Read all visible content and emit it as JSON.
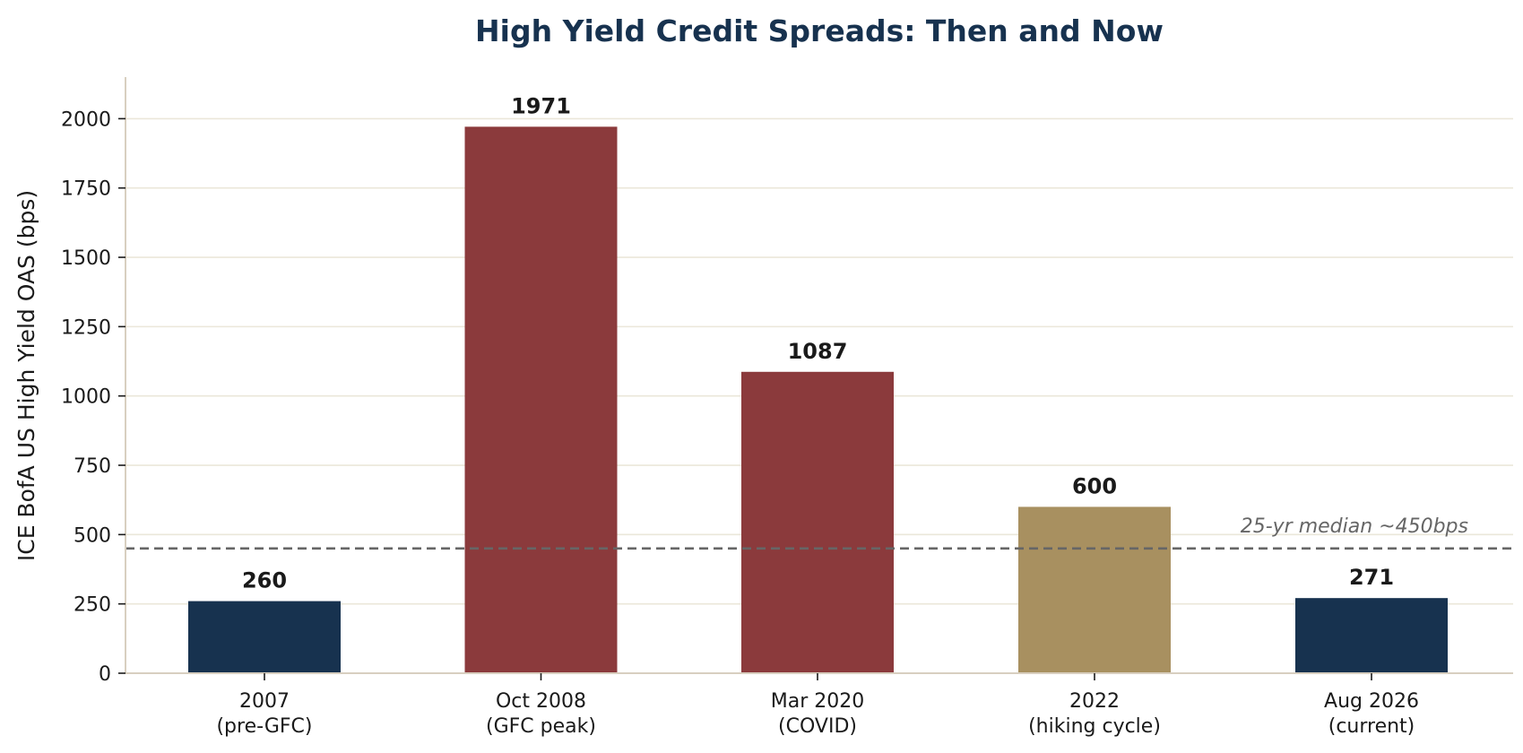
{
  "chart_data": {
    "type": "bar",
    "title": "High Yield Credit Spreads: Then and Now",
    "xlabel": "",
    "ylabel": "ICE BofA US High Yield OAS (bps)",
    "ylim": [
      0,
      2150
    ],
    "yticks": [
      0,
      250,
      500,
      750,
      1000,
      1250,
      1500,
      1750,
      2000
    ],
    "grid": "horizontal",
    "legend": "none",
    "categories": [
      [
        "2007",
        "(pre-GFC)"
      ],
      [
        "Oct 2008",
        "(GFC peak)"
      ],
      [
        "Mar 2020",
        "(COVID)"
      ],
      [
        "2022",
        "(hiking cycle)"
      ],
      [
        "Aug 2026",
        "(current)"
      ]
    ],
    "values": [
      260,
      1971,
      1087,
      600,
      271
    ],
    "bar_colors": [
      "#17324f",
      "#8b3a3c",
      "#8b3a3c",
      "#a89060",
      "#17324f"
    ],
    "reference_line": {
      "value": 450,
      "label": "25-yr median ~450bps",
      "style": "dashed",
      "color": "#666666"
    },
    "colors": {
      "title": "#17324f",
      "grid": "#ebe7da",
      "axis": "#d8cfc0",
      "text": "#1a1a1a"
    }
  }
}
